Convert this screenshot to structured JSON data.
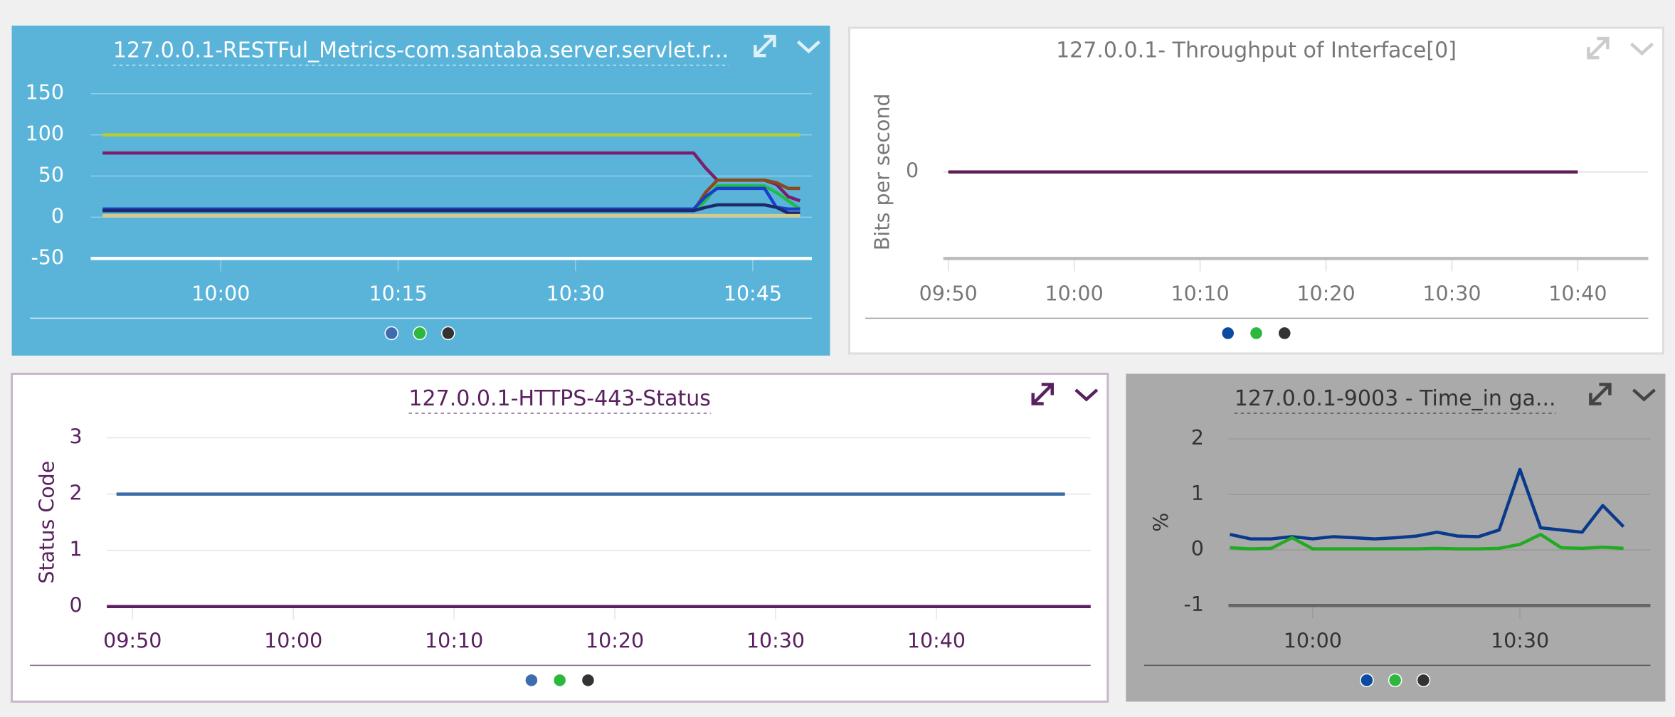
{
  "chart_data": [
    {
      "type": "line",
      "title": "127.0.0.1-RESTFul_Metrics-com.santaba.server.servlet.r...",
      "x": [
        590,
        638,
        640,
        641,
        642,
        646,
        647,
        648,
        649
      ],
      "xlim": [
        589,
        650
      ],
      "xticks": [
        {
          "value": 600,
          "label": "10:00"
        },
        {
          "value": 615,
          "label": "10:15"
        },
        {
          "value": 630,
          "label": "10:30"
        },
        {
          "value": 645,
          "label": "10:45"
        }
      ],
      "ylim": [
        -50,
        160
      ],
      "yticks": [
        150,
        100,
        50,
        0,
        -50
      ],
      "grid": true,
      "series": [
        {
          "color": "#b5cf2e",
          "values": [
            100,
            100,
            100,
            100,
            100,
            100,
            100,
            100,
            100
          ]
        },
        {
          "color": "#7b1e6e",
          "values": [
            78,
            78,
            78,
            60,
            45,
            45,
            40,
            25,
            20
          ]
        },
        {
          "color": "#8a4a1a",
          "values": [
            8,
            8,
            8,
            30,
            45,
            45,
            42,
            35,
            35
          ]
        },
        {
          "color": "#22bb44",
          "values": [
            8,
            8,
            8,
            20,
            38,
            38,
            30,
            20,
            10
          ]
        },
        {
          "color": "#1a3fcc",
          "values": [
            10,
            10,
            10,
            25,
            35,
            35,
            12,
            10,
            10
          ]
        },
        {
          "color": "#1d2a6b",
          "values": [
            8,
            8,
            8,
            12,
            15,
            15,
            12,
            5,
            5
          ]
        },
        {
          "color": "#d8c98a",
          "values": [
            2,
            2,
            2,
            2,
            2,
            2,
            2,
            2,
            2
          ]
        }
      ],
      "legend_colors": [
        "#3d6db0",
        "#2db83d",
        "#333333"
      ]
    },
    {
      "type": "line",
      "title": "127.0.0.1- Throughput of Interface[0]",
      "ylabel": "Bits per second",
      "x": [
        590,
        640
      ],
      "xlim": [
        589.6,
        645.6
      ],
      "xticks": [
        {
          "value": 590,
          "label": "09:50"
        },
        {
          "value": 600,
          "label": "10:00"
        },
        {
          "value": 610,
          "label": "10:10"
        },
        {
          "value": 620,
          "label": "10:20"
        },
        {
          "value": 630,
          "label": "10:30"
        },
        {
          "value": 640,
          "label": "10:40"
        }
      ],
      "ylim": [
        -1,
        1
      ],
      "yticks": [
        0
      ],
      "grid": true,
      "series": [
        {
          "color": "#5e1e55",
          "values": [
            0,
            0
          ]
        }
      ],
      "legend_colors": [
        "#0a4aa0",
        "#2db83d",
        "#333333"
      ]
    },
    {
      "type": "line",
      "title": "127.0.0.1-HTTPS-443-Status",
      "ylabel": "Status Code",
      "x": [
        589,
        648
      ],
      "xlim": [
        588.4,
        649.6
      ],
      "xticks": [
        {
          "value": 590,
          "label": "09:50"
        },
        {
          "value": 600,
          "label": "10:00"
        },
        {
          "value": 610,
          "label": "10:10"
        },
        {
          "value": 620,
          "label": "10:20"
        },
        {
          "value": 630,
          "label": "10:30"
        },
        {
          "value": 640,
          "label": "10:40"
        }
      ],
      "ylim": [
        0,
        3
      ],
      "yticks": [
        3,
        2,
        1,
        0
      ],
      "grid": true,
      "series": [
        {
          "color": "#3a6aa8",
          "values": [
            2,
            2
          ]
        }
      ],
      "legend_colors": [
        "#3d6db0",
        "#2db83d",
        "#333333"
      ]
    },
    {
      "type": "line",
      "title": "127.0.0.1-9003 - Time_in ga...",
      "ylabel": "%",
      "x": [
        588,
        591,
        594,
        597,
        600,
        603,
        606,
        609,
        612,
        615,
        618,
        621,
        624,
        627,
        630,
        633,
        636,
        639,
        642,
        645
      ],
      "xlim": [
        587.8,
        648.9
      ],
      "xticks": [
        {
          "value": 600,
          "label": "10:00"
        },
        {
          "value": 630,
          "label": "10:30"
        }
      ],
      "ylim": [
        -1,
        2
      ],
      "yticks": [
        2,
        1,
        0,
        -1
      ],
      "grid": true,
      "series": [
        {
          "color": "#0a3a8c",
          "values": [
            0.28,
            0.2,
            0.2,
            0.24,
            0.2,
            0.24,
            0.22,
            0.2,
            0.22,
            0.25,
            0.32,
            0.25,
            0.24,
            0.36,
            1.45,
            0.4,
            0.36,
            0.32,
            0.8,
            0.42
          ]
        },
        {
          "color": "#22aa22",
          "values": [
            0.04,
            0.02,
            0.03,
            0.22,
            0.02,
            0.02,
            0.02,
            0.02,
            0.02,
            0.02,
            0.03,
            0.02,
            0.02,
            0.03,
            0.1,
            0.28,
            0.04,
            0.03,
            0.05,
            0.03
          ]
        }
      ],
      "legend_colors": [
        "#0a4aa0",
        "#2db83d",
        "#333333"
      ]
    }
  ]
}
